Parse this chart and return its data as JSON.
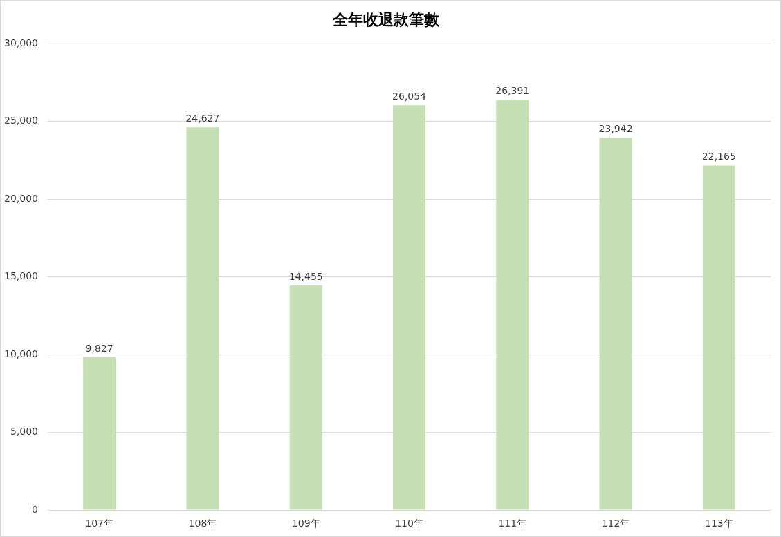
{
  "chart_data": {
    "type": "bar",
    "title": "全年收退款筆數",
    "categories": [
      "107年",
      "108年",
      "109年",
      "110年",
      "111年",
      "112年",
      "113年"
    ],
    "values": [
      9827,
      24627,
      14455,
      26054,
      26391,
      23942,
      22165
    ],
    "color": "#c5e0b4",
    "value_labels": [
      "9,827",
      "24,627",
      "14,455",
      "26,054",
      "26,391",
      "23,942",
      "22,165"
    ],
    "ylim": [
      0,
      30000
    ],
    "yticks": [
      0,
      {
        "value": 5000,
        "label": "5,000"
      },
      {
        "value": 10000,
        "label": "10,000"
      },
      {
        "value": 15000,
        "label": "15,000"
      },
      {
        "value": 20000,
        "label": "20,000"
      },
      {
        "value": 25000,
        "label": "25,000"
      },
      {
        "value": 30000,
        "label": "30,000"
      }
    ],
    "grid": "y",
    "legend": false
  }
}
